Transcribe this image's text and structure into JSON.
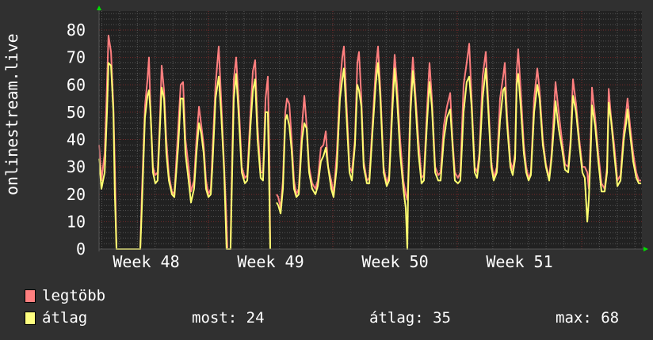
{
  "chart_data": {
    "type": "line",
    "ylabel": "onlinestream.live",
    "ylim": [
      0,
      80
    ],
    "yticks": [
      "0",
      "10",
      "20",
      "30",
      "40",
      "50",
      "60",
      "70",
      "80"
    ],
    "xlim": [
      48.121,
      52.49
    ],
    "xticks": [
      {
        "value": 48.5,
        "label": "Week 48"
      },
      {
        "value": 49.5,
        "label": "Week 49"
      },
      {
        "value": 50.5,
        "label": "Week 50"
      },
      {
        "value": 51.5,
        "label": "Week 51"
      }
    ],
    "grid": true,
    "colors": {
      "background": "#303030",
      "plot": "#212121",
      "max": "#ff7f7f",
      "avg": "#ffff70",
      "major_grid": "#7a2a2a",
      "minor_grid": "#555555",
      "arrow": "#00dd00"
    },
    "x": [
      48.121,
      48.14,
      48.166,
      48.185,
      48.197,
      48.217,
      48.236,
      48.248,
      48.261,
      48.452,
      48.465,
      48.49,
      48.51,
      48.522,
      48.535,
      48.554,
      48.573,
      48.592,
      48.611,
      48.624,
      48.643,
      48.662,
      48.682,
      48.707,
      48.726,
      48.758,
      48.777,
      48.796,
      48.815,
      48.841,
      48.86,
      48.885,
      48.904,
      48.924,
      48.943,
      48.962,
      48.981,
      49.0,
      49.019,
      49.032,
      49.057,
      49.083,
      49.102,
      49.127,
      49.146,
      49.153,
      49.178,
      49.185,
      49.204,
      49.223,
      49.242,
      49.268,
      49.293,
      49.312,
      49.338,
      49.357,
      49.376,
      49.395,
      49.42,
      49.439,
      49.459,
      49.478,
      49.49,
      49.497,
      49.503,
      49.548,
      49.561,
      49.58,
      49.599,
      49.618,
      49.631,
      49.65,
      49.669,
      49.688,
      49.707,
      49.726,
      49.752,
      49.771,
      49.79,
      49.809,
      49.834,
      49.86,
      49.879,
      49.904,
      49.924,
      49.943,
      49.962,
      49.987,
      50.006,
      50.032,
      50.057,
      50.076,
      50.089,
      50.108,
      50.134,
      50.153,
      50.178,
      50.197,
      50.21,
      50.229,
      50.248,
      50.274,
      50.293,
      50.318,
      50.344,
      50.363,
      50.382,
      50.408,
      50.433,
      50.452,
      50.478,
      50.497,
      50.516,
      50.541,
      50.567,
      50.586,
      50.599,
      50.605,
      50.624,
      50.643,
      50.662,
      50.688,
      50.713,
      50.732,
      50.758,
      50.777,
      50.796,
      50.822,
      50.847,
      50.866,
      50.892,
      50.917,
      50.943,
      50.962,
      50.981,
      51.006,
      51.025,
      51.051,
      51.076,
      51.096,
      51.115,
      51.14,
      51.159,
      51.178,
      51.204,
      51.229,
      51.248,
      51.274,
      51.293,
      51.318,
      51.344,
      51.369,
      51.382,
      51.401,
      51.427,
      51.446,
      51.465,
      51.478,
      51.49,
      51.51,
      51.535,
      51.554,
      51.573,
      51.592,
      51.618,
      51.643,
      51.662,
      51.688,
      51.713,
      51.739,
      51.758,
      51.783,
      51.79,
      51.815,
      51.841,
      51.866,
      51.892,
      51.911,
      51.93,
      51.955,
      51.981,
      52.006,
      52.025,
      52.045,
      52.057,
      52.076,
      52.083,
      52.108,
      52.134,
      52.159,
      52.185,
      52.204,
      52.217,
      52.236,
      52.261,
      52.287,
      52.312,
      52.338,
      52.357,
      52.369,
      52.389,
      52.414,
      52.439,
      52.459,
      52.478
    ],
    "series": [
      {
        "name": "legtöbb",
        "values": [
          38,
          25,
          35,
          60,
          78,
          72,
          52,
          30,
          0,
          0,
          20,
          52,
          62,
          70,
          50,
          30,
          27,
          28,
          48,
          67,
          58,
          40,
          27,
          21,
          20,
          45,
          60,
          61,
          40,
          30,
          21,
          25,
          40,
          52,
          45,
          38,
          25,
          20,
          22,
          35,
          60,
          74,
          55,
          30,
          10,
          0,
          0,
          20,
          62,
          70,
          55,
          30,
          26,
          27,
          50,
          65,
          69,
          45,
          28,
          28,
          55,
          63,
          35,
          0,
          null,
          20,
          19,
          15,
          25,
          50,
          55,
          53,
          40,
          25,
          20,
          22,
          45,
          56,
          45,
          30,
          24,
          22,
          25,
          37,
          38,
          43,
          30,
          25,
          20,
          35,
          60,
          70,
          74,
          55,
          30,
          28,
          40,
          68,
          72,
          55,
          32,
          25,
          26,
          45,
          65,
          74,
          58,
          30,
          24,
          27,
          55,
          71,
          60,
          40,
          25,
          20,
          18,
          25,
          55,
          70,
          58,
          40,
          26,
          27,
          52,
          68,
          55,
          30,
          27,
          28,
          45,
          52,
          57,
          40,
          28,
          26,
          28,
          60,
          68,
          75,
          55,
          30,
          28,
          35,
          63,
          72,
          55,
          32,
          26,
          30,
          55,
          63,
          68,
          48,
          32,
          29,
          35,
          65,
          73,
          58,
          38,
          30,
          26,
          28,
          55,
          66,
          58,
          40,
          31,
          26,
          35,
          55,
          61,
          50,
          40,
          31,
          30,
          40,
          62,
          53,
          40,
          30,
          30,
          28,
          22,
          45,
          59,
          48,
          35,
          24,
          22,
          30,
          58.5,
          48,
          38,
          25,
          27,
          43,
          50,
          55,
          45,
          35,
          28,
          25,
          25
        ]
      },
      {
        "name": "átlag",
        "values": [
          33,
          22,
          28,
          50,
          68,
          67,
          50,
          20,
          0,
          0,
          15,
          48,
          56,
          58,
          50,
          28,
          24,
          25,
          45,
          59,
          55,
          35,
          25,
          20,
          19,
          38,
          55,
          55,
          35,
          25,
          17,
          22,
          35,
          46,
          42,
          35,
          22,
          19,
          20,
          30,
          55,
          63,
          50,
          28,
          0,
          0,
          0,
          15,
          55,
          64,
          50,
          28,
          24,
          25,
          45,
          58,
          62,
          40,
          26,
          25,
          50,
          50,
          20,
          0,
          null,
          17,
          16,
          13,
          22,
          47,
          49,
          45,
          36,
          22,
          19,
          20,
          40,
          46,
          44,
          28,
          22,
          20,
          23,
          32,
          34,
          37,
          30,
          22,
          19,
          30,
          55,
          62,
          66,
          50,
          28,
          25,
          38,
          60,
          58,
          52,
          30,
          24,
          24,
          42,
          60,
          68,
          55,
          28,
          23,
          25,
          50,
          66,
          55,
          35,
          22,
          15,
          0,
          22,
          50,
          65,
          55,
          35,
          24,
          25,
          47,
          61,
          52,
          28,
          25,
          25,
          40,
          48,
          51,
          38,
          25,
          24,
          25,
          50,
          61,
          63,
          52,
          28,
          26,
          33,
          55,
          66,
          52,
          30,
          25,
          28,
          47,
          58,
          59,
          45,
          30,
          27,
          33,
          60,
          64,
          52,
          35,
          28,
          25,
          27,
          50,
          60,
          55,
          38,
          30,
          25,
          33,
          48,
          54,
          44,
          37,
          29,
          28,
          38,
          56,
          50,
          38,
          28,
          26,
          10,
          18,
          40,
          52.5,
          45,
          32,
          21,
          21,
          28,
          53.5,
          47,
          35,
          23,
          25,
          40,
          46,
          51,
          42,
          32,
          26,
          24,
          24
        ]
      }
    ]
  },
  "legend": {
    "items": [
      {
        "label": "legtöbb",
        "color": "#ff8080"
      },
      {
        "label": "átlag",
        "color": "#ffff80"
      }
    ],
    "stats": {
      "now": "most: 24",
      "avg": "átlag: 35",
      "max": "max: 68"
    }
  }
}
